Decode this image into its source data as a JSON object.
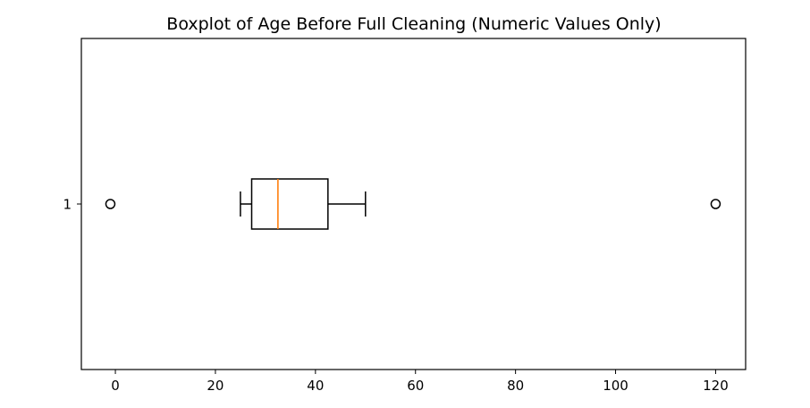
{
  "chart_data": {
    "type": "boxplot",
    "orientation": "horizontal",
    "title": "Boxplot of Age Before Full Cleaning (Numeric Values Only)",
    "xlabel": "",
    "ylabel": "",
    "xlim": [
      -6.8,
      126.0
    ],
    "x_ticks": [
      0,
      20,
      40,
      60,
      80,
      100,
      120
    ],
    "y_ticks": [
      "1"
    ],
    "grid": false,
    "series": [
      {
        "category": "1",
        "whisker_low": 25,
        "q1": 27.25,
        "median": 32.5,
        "q3": 42.5,
        "whisker_high": 50,
        "outliers": [
          -1,
          120
        ]
      }
    ],
    "colors": {
      "box": "#000000",
      "median": "#ff7f0e",
      "outlier": "#000000"
    }
  }
}
